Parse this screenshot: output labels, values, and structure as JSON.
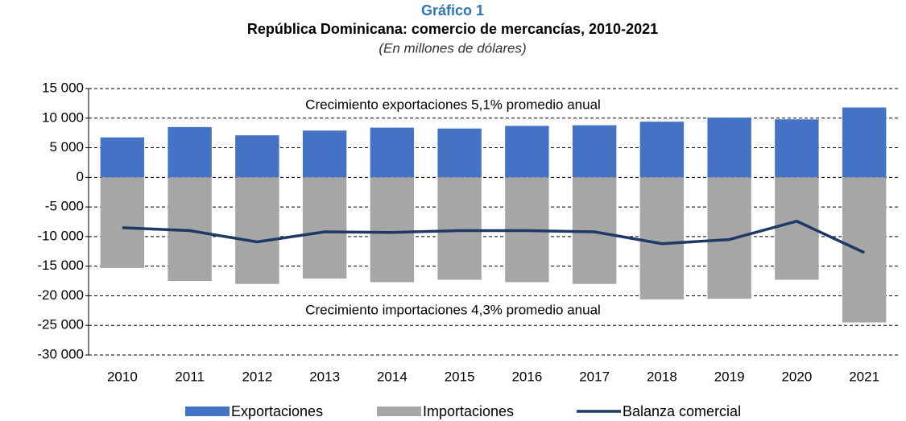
{
  "chart_data": {
    "type": "bar",
    "label": "Gráfico 1",
    "title": "República Dominicana: comercio de mercancías, 2010-2021",
    "subtitle": "(En millones de dólares)",
    "annotations": [
      "Crecimiento exportaciones 5,1% promedio anual",
      "Crecimiento importaciones 4,3% promedio anual"
    ],
    "categories": [
      "2010",
      "2011",
      "2012",
      "2013",
      "2014",
      "2015",
      "2016",
      "2017",
      "2018",
      "2019",
      "2020",
      "2021"
    ],
    "series": [
      {
        "name": "Exportaciones",
        "color": "#4472c4",
        "kind": "bar",
        "values": [
          6750,
          8500,
          7100,
          7900,
          8400,
          8250,
          8700,
          8800,
          9400,
          10100,
          9800,
          11800
        ]
      },
      {
        "name": "Importaciones",
        "color": "#a6a6a6",
        "kind": "bar",
        "values": [
          -15300,
          -17500,
          -18000,
          -17100,
          -17700,
          -17300,
          -17700,
          -18000,
          -20600,
          -20500,
          -17300,
          -24500
        ]
      },
      {
        "name": "Balanza comercial",
        "color": "#1f3864",
        "kind": "line",
        "values": [
          -8500,
          -9000,
          -10900,
          -9200,
          -9300,
          -9000,
          -9000,
          -9200,
          -11200,
          -10500,
          -7400,
          -12700
        ]
      }
    ],
    "ylim": [
      -30000,
      15000
    ],
    "yticks": [
      {
        "value": 15000,
        "label": "15 000"
      },
      {
        "value": 10000,
        "label": "10 000"
      },
      {
        "value": 5000,
        "label": "5 000"
      },
      0,
      {
        "value": -5000,
        "label": "-5 000"
      },
      {
        "value": -10000,
        "label": "-10 000"
      },
      {
        "value": -15000,
        "label": "-15 000"
      },
      {
        "value": -20000,
        "label": "-20 000"
      },
      {
        "value": -25000,
        "label": "-25 000"
      },
      {
        "value": -30000,
        "label": "-30 000"
      }
    ],
    "grid": true,
    "legend": "bottom"
  }
}
